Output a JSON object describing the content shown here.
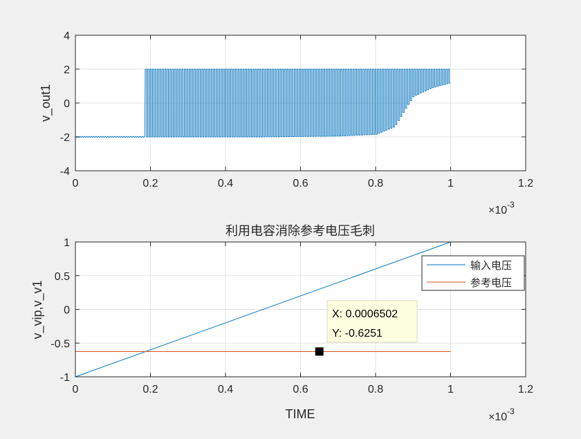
{
  "chart_data": [
    {
      "type": "line",
      "title": "",
      "xlabel": "",
      "ylabel": "v_out1",
      "xlim": [
        0,
        0.0012
      ],
      "ylim": [
        -4,
        4
      ],
      "x_ticks": [
        "0",
        "0.2",
        "0.4",
        "0.6",
        "0.8",
        "1",
        "1.2"
      ],
      "y_ticks": [
        "-4",
        "-2",
        "0",
        "2",
        "4"
      ],
      "x_exponent": "×10",
      "x_exponent_power": "-3",
      "grid": true,
      "series": [
        {
          "color": "#0072bd",
          "description_points": {
            "x": [
              0,
              0.000185,
              0.000186,
              0.0005,
              0.0007,
              0.0008,
              0.00085,
              0.00088,
              0.0009,
              0.00095,
              0.001
            ],
            "y_low": [
              -2,
              -2,
              -2,
              -2,
              -1.95,
              -1.85,
              -1.4,
              -0.3,
              0.4,
              0.9,
              1.2
            ],
            "y_high": [
              -2,
              -2,
              2,
              2,
              2,
              2,
              2,
              2,
              2,
              2,
              2
            ]
          },
          "pulse_count": 125
        }
      ]
    },
    {
      "type": "line",
      "title": "利用电容消除参考电压毛刺",
      "xlabel": "TIME",
      "ylabel": "v_vip,v_v1",
      "xlim": [
        0,
        0.0012
      ],
      "ylim": [
        -1,
        1
      ],
      "x_ticks": [
        "0",
        "0.2",
        "0.4",
        "0.6",
        "0.8",
        "1",
        "1.2"
      ],
      "y_ticks": [
        "-1",
        "-0.5",
        "0",
        "0.5",
        "1"
      ],
      "x_exponent": "×10",
      "x_exponent_power": "-3",
      "grid": true,
      "legend": "top-right",
      "series": [
        {
          "name": "输入电压",
          "color": "#0072bd",
          "x": [
            0,
            0.001
          ],
          "y": [
            -1,
            1
          ]
        },
        {
          "name": "参考电压",
          "color": "#d95319",
          "x": [
            0,
            0.001
          ],
          "y": [
            -0.6251,
            -0.6251
          ]
        }
      ],
      "datatip": {
        "x": 0.0006502,
        "y": -0.6251,
        "x_text": "X: 0.0006502",
        "y_text": "Y: -0.6251"
      }
    }
  ]
}
